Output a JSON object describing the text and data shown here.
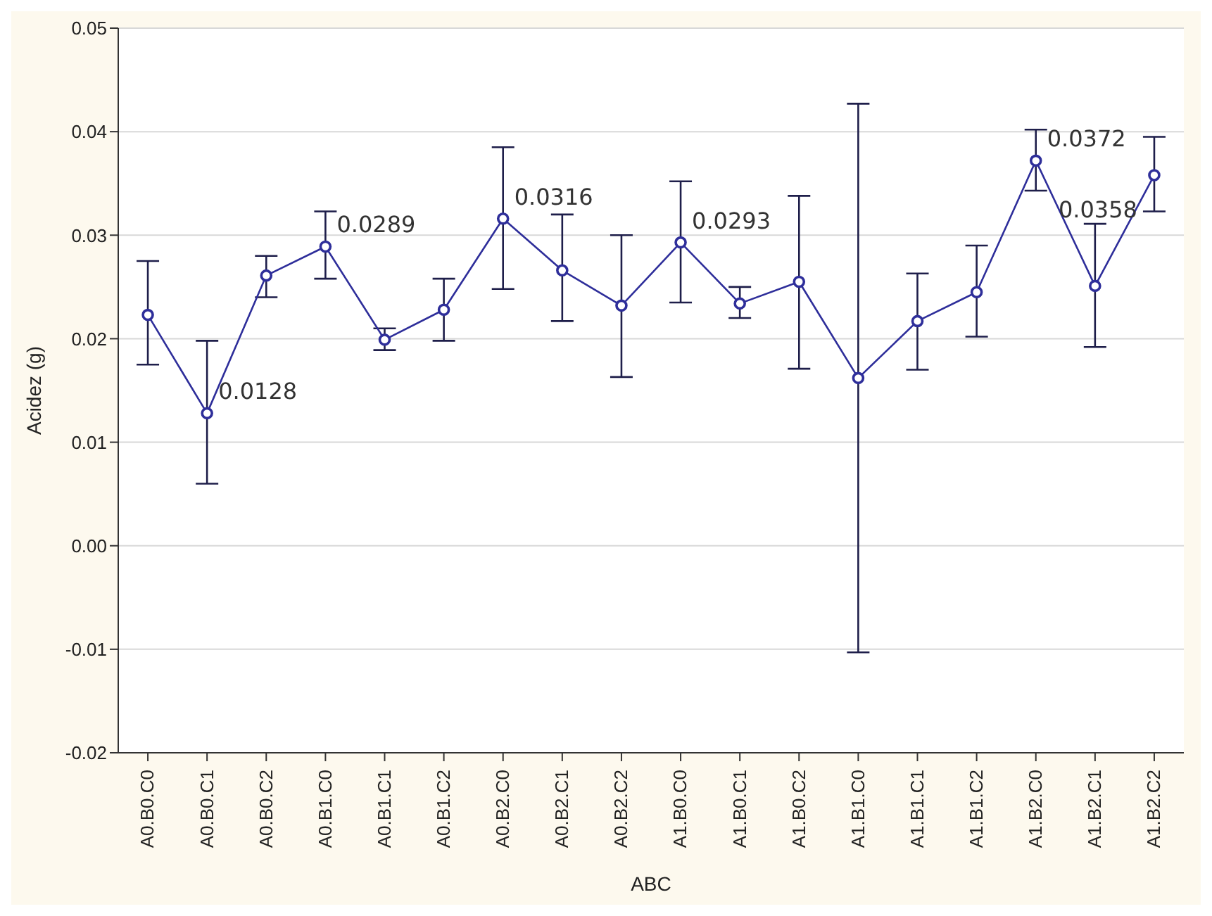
{
  "chart_data": {
    "type": "line",
    "xlabel": "ABC",
    "ylabel": "Acidez (g)",
    "categories": [
      "A0.B0.C0",
      "A0.B0.C1",
      "A0.B0.C2",
      "A0.B1.C0",
      "A0.B1.C1",
      "A0.B1.C2",
      "A0.B2.C0",
      "A0.B2.C1",
      "A0.B2.C2",
      "A1.B0.C0",
      "A1.B0.C1",
      "A1.B0.C2",
      "A1.B1.C0",
      "A1.B1.C1",
      "A1.B1.C2",
      "A1.B2.C0",
      "A1.B2.C1",
      "A1.B2.C2"
    ],
    "series": [
      {
        "color": "#2e2e9a",
        "values": [
          0.0223,
          0.0128,
          0.0261,
          0.0289,
          0.0199,
          0.0228,
          0.0316,
          0.0266,
          0.0232,
          0.0293,
          0.0234,
          0.0255,
          0.0162,
          0.0217,
          0.0245,
          0.0372,
          0.0251,
          0.0358
        ],
        "errors": [
          [
            0.0175,
            0.0275
          ],
          [
            0.006,
            0.0198
          ],
          [
            0.024,
            0.028
          ],
          [
            0.0258,
            0.0323
          ],
          [
            0.0189,
            0.021
          ],
          [
            0.0198,
            0.0258
          ],
          [
            0.0248,
            0.0385
          ],
          [
            0.0217,
            0.032
          ],
          [
            0.0163,
            0.03
          ],
          [
            0.0235,
            0.0352
          ],
          [
            0.022,
            0.025
          ],
          [
            0.0171,
            0.0338
          ],
          [
            -0.0103,
            0.0427
          ],
          [
            0.017,
            0.0263
          ],
          [
            0.0202,
            0.029
          ],
          [
            0.0343,
            0.0402
          ],
          [
            0.0192,
            0.0311
          ],
          [
            0.0323,
            0.0395
          ]
        ],
        "value_labels": [
          null,
          "0.0128",
          null,
          "0.0289",
          null,
          null,
          "0.0316",
          null,
          null,
          "0.0293",
          null,
          null,
          null,
          null,
          null,
          "0.0372",
          null,
          "0.0358"
        ]
      }
    ],
    "ylim": [
      -0.02,
      0.05
    ],
    "yticks": [
      -0.02,
      -0.01,
      {
        "value": 0,
        "label": "0.00"
      },
      0.01,
      0.02,
      0.03,
      0.04,
      0.05
    ],
    "grid": "y",
    "marker": "circle",
    "line_style": "solid"
  }
}
